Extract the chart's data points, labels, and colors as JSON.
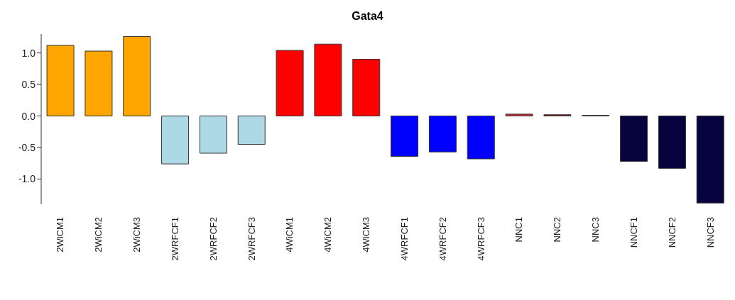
{
  "chart_data": {
    "type": "bar",
    "title": "Gata4",
    "categories": [
      "2WiCM1",
      "2WiCM2",
      "2WiCM3",
      "2WRFCF1",
      "2WRFCF2",
      "2WRFCF3",
      "4WiCM1",
      "4WiCM2",
      "4WiCM3",
      "4WRFCF1",
      "4WRFCF2",
      "4WRFCF3",
      "NNC1",
      "NNC2",
      "NNC3",
      "NNCF1",
      "NNCF2",
      "NNCF3"
    ],
    "values": [
      1.12,
      1.03,
      1.26,
      -0.76,
      -0.59,
      -0.45,
      1.04,
      1.14,
      0.9,
      -0.64,
      -0.57,
      -0.68,
      0.03,
      0.02,
      0.01,
      -0.72,
      -0.83,
      -1.38
    ],
    "colors": [
      "#ffa500",
      "#ffa500",
      "#ffa500",
      "#add8e6",
      "#add8e6",
      "#add8e6",
      "#ff0000",
      "#ff0000",
      "#ff0000",
      "#0000ff",
      "#0000ff",
      "#0000ff",
      "#c83232",
      "#8b1a1a",
      "#202020",
      "#06033f",
      "#06033f",
      "#06033f"
    ],
    "ylim": [
      -1.4,
      1.3
    ],
    "yticks": [
      {
        "value": -1,
        "label": "-1.0"
      },
      -0.5,
      {
        "value": 0,
        "label": "0.0"
      },
      0.5,
      {
        "value": 1,
        "label": "1.0"
      }
    ],
    "grid": false
  }
}
